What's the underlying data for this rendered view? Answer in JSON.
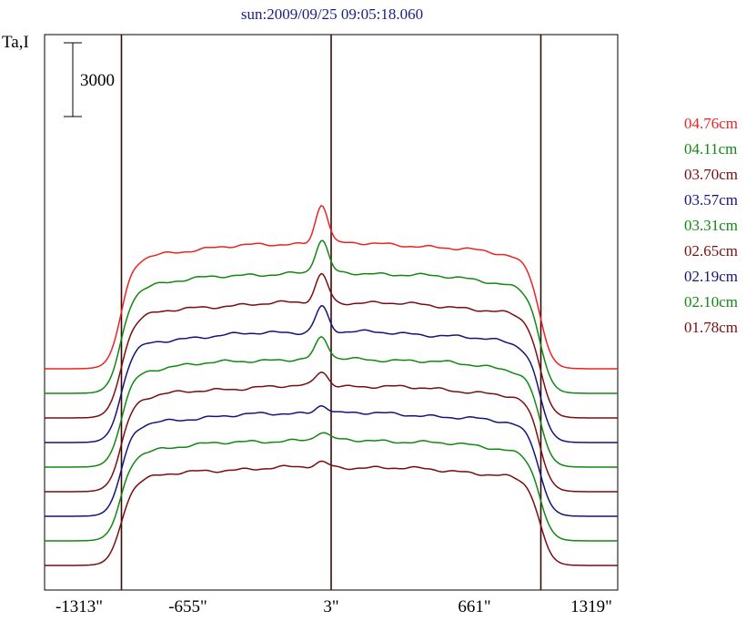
{
  "chart_data": {
    "type": "line",
    "title": "sun:2009/09/25 09:05:18.060",
    "ylabel": "Ta,I",
    "scale_bar_label": "3000",
    "xlim": [
      -1313,
      1319
    ],
    "x_ticks": [
      {
        "value": -1313,
        "label": "-1313\""
      },
      {
        "value": -655,
        "label": "-655\""
      },
      {
        "value": 3,
        "label": "3\""
      },
      {
        "value": 661,
        "label": "661\""
      },
      {
        "value": 1319,
        "label": "1319\""
      }
    ],
    "vertical_markers": [
      -960,
      3,
      966
    ],
    "grid": false,
    "legend_position": "right",
    "series": [
      {
        "name": "04.76cm",
        "color": "#ee2222",
        "offset": 8000,
        "disk": 5100,
        "peak": 1600
      },
      {
        "name": "04.11cm",
        "color": "#118811",
        "offset": 7000,
        "disk": 4900,
        "peak": 1300
      },
      {
        "name": "03.70cm",
        "color": "#7a0e0e",
        "offset": 6000,
        "disk": 4700,
        "peak": 1150
      },
      {
        "name": "03.57cm",
        "color": "#14147a",
        "offset": 5000,
        "disk": 4500,
        "peak": 1050
      },
      {
        "name": "03.31cm",
        "color": "#118811",
        "offset": 4000,
        "disk": 4400,
        "peak": 850
      },
      {
        "name": "02.65cm",
        "color": "#7a0e0e",
        "offset": 3000,
        "disk": 4300,
        "peak": 600
      },
      {
        "name": "02.19cm",
        "color": "#14147a",
        "offset": 2000,
        "disk": 4200,
        "peak": 350
      },
      {
        "name": "02.10cm",
        "color": "#118811",
        "offset": 1000,
        "disk": 4100,
        "peak": 300
      },
      {
        "name": "01.78cm",
        "color": "#7a0e0e",
        "offset": 0,
        "disk": 4000,
        "peak": 200
      }
    ]
  }
}
